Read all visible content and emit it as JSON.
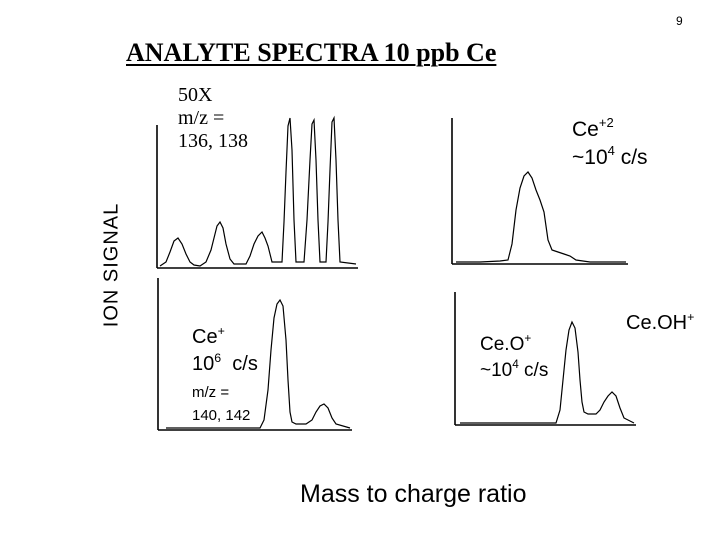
{
  "page_number": "9",
  "title": "ANALYTE SPECTRA 10 ppb Ce",
  "y_axis_label": "ION SIGNAL",
  "x_axis_label": "Mass to charge ratio",
  "panels": {
    "top_left": {
      "line1": "50X",
      "line2": "m/z =",
      "line3": "136, 138"
    },
    "top_right": {
      "species": "Ce",
      "species_sup": "+2",
      "rate_prefix": "~10",
      "rate_exp": "4",
      "rate_unit": " c/s"
    },
    "bottom_left": {
      "species": "Ce",
      "species_sup": "+",
      "rate_prefix": "10",
      "rate_exp": "6",
      "rate_unit": "  c/s",
      "mz_line1": "m/z  =",
      "mz_line2": "140, 142"
    },
    "bottom_right": {
      "species": "Ce.O",
      "species_sup": "+",
      "rate_prefix": "~10",
      "rate_exp": "4",
      "rate_unit": " c/s"
    },
    "far_right": {
      "species": "Ce.OH",
      "species_sup": "+"
    }
  }
}
